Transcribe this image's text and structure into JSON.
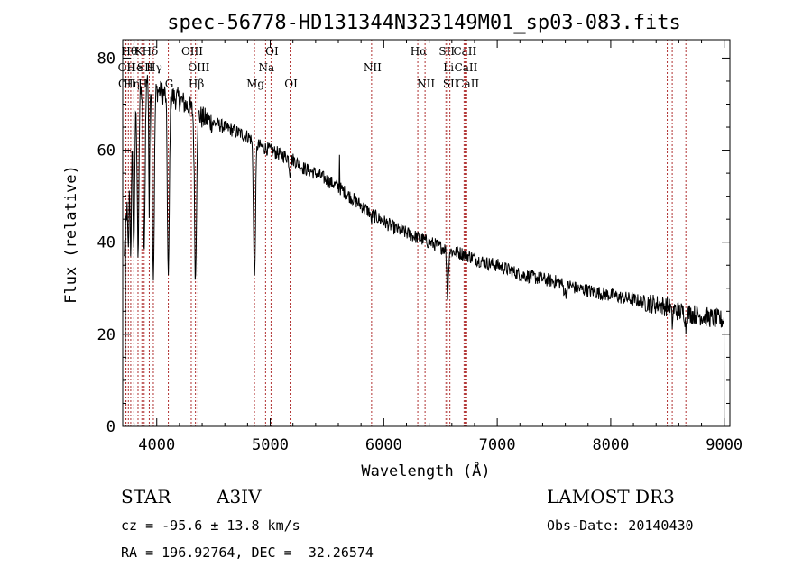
{
  "chart_data": {
    "type": "line",
    "title": "spec-56778-HD131344N323149M01_sp03-083.fits",
    "xlabel": "Wavelength (Å)",
    "ylabel": "Flux (relative)",
    "xlim": [
      3700,
      9050
    ],
    "ylim": [
      0,
      84
    ],
    "xticks": [
      4000,
      5000,
      6000,
      7000,
      8000,
      9000
    ],
    "yticks": [
      0,
      20,
      40,
      60,
      80
    ],
    "continuum": [
      [
        3700,
        32
      ],
      [
        3760,
        58
      ],
      [
        3800,
        66
      ],
      [
        3850,
        72
      ],
      [
        3900,
        75
      ],
      [
        3950,
        76
      ],
      [
        4000,
        73
      ],
      [
        4100,
        72
      ],
      [
        4200,
        71
      ],
      [
        4300,
        69
      ],
      [
        4400,
        67
      ],
      [
        4500,
        66
      ],
      [
        4600,
        65
      ],
      [
        4700,
        64
      ],
      [
        4800,
        63
      ],
      [
        4900,
        61
      ],
      [
        5000,
        60
      ],
      [
        5100,
        59
      ],
      [
        5200,
        58
      ],
      [
        5300,
        56
      ],
      [
        5400,
        55
      ],
      [
        5500,
        53.5
      ],
      [
        5600,
        52
      ],
      [
        5700,
        50
      ],
      [
        5800,
        48
      ],
      [
        5900,
        46
      ],
      [
        6000,
        44.5
      ],
      [
        6100,
        43
      ],
      [
        6200,
        42
      ],
      [
        6300,
        41
      ],
      [
        6400,
        40
      ],
      [
        6500,
        39
      ],
      [
        6600,
        38
      ],
      [
        6700,
        37.5
      ],
      [
        6800,
        36.5
      ],
      [
        6900,
        35.5
      ],
      [
        7000,
        35
      ],
      [
        7100,
        34
      ],
      [
        7200,
        33
      ],
      [
        7300,
        32.5
      ],
      [
        7400,
        32
      ],
      [
        7500,
        31.5
      ],
      [
        7600,
        31
      ],
      [
        7700,
        30
      ],
      [
        7800,
        29.5
      ],
      [
        7900,
        29
      ],
      [
        8000,
        28.5
      ],
      [
        8100,
        28
      ],
      [
        8200,
        27.5
      ],
      [
        8300,
        27
      ],
      [
        8400,
        26.5
      ],
      [
        8500,
        26
      ],
      [
        8600,
        25
      ],
      [
        8700,
        24.5
      ],
      [
        8800,
        24
      ],
      [
        8900,
        23.5
      ],
      [
        9000,
        23
      ]
    ],
    "absorption": [
      {
        "w": 3750,
        "depth": 16,
        "width": 8
      },
      {
        "w": 3771,
        "depth": 22,
        "width": 8
      },
      {
        "w": 3798,
        "depth": 28,
        "width": 9
      },
      {
        "w": 3835,
        "depth": 32,
        "width": 10
      },
      {
        "w": 3889,
        "depth": 38,
        "width": 11
      },
      {
        "w": 3934,
        "depth": 30,
        "width": 6
      },
      {
        "w": 3970,
        "depth": 42,
        "width": 12
      },
      {
        "w": 4102,
        "depth": 40,
        "width": 12
      },
      {
        "w": 4341,
        "depth": 36,
        "width": 12
      },
      {
        "w": 4861,
        "depth": 30,
        "width": 12
      },
      {
        "w": 5174,
        "depth": 3,
        "width": 10
      },
      {
        "w": 5890,
        "depth": 2,
        "width": 6
      },
      {
        "w": 6563,
        "depth": 10,
        "width": 10
      },
      {
        "w": 7600,
        "depth": 2,
        "width": 20
      },
      {
        "w": 8542,
        "depth": 3,
        "width": 8
      },
      {
        "w": 8662,
        "depth": 3,
        "width": 8
      }
    ],
    "spikes": [
      {
        "w": 3722,
        "value": 14
      },
      {
        "w": 5610,
        "value": 59
      }
    ],
    "lines": [
      {
        "w": 3726,
        "label": "OII",
        "row": 1
      },
      {
        "w": 3729,
        "label": "OII",
        "row": 2
      },
      {
        "w": 3750,
        "label": "Hθ",
        "row": 0
      },
      {
        "w": 3771,
        "label": "Hη",
        "row": 2
      },
      {
        "w": 3798,
        "label": "He",
        "row": 1
      },
      {
        "w": 3835,
        "label": "K",
        "row": 0
      },
      {
        "w": 3869,
        "label": "H",
        "row": 2
      },
      {
        "w": 3889,
        "label": "SII",
        "row": 1
      },
      {
        "w": 3934,
        "label": "Hδ",
        "row": 0
      },
      {
        "w": 3970,
        "label": "Hγ",
        "row": 1
      },
      {
        "w": 4102,
        "label": "G",
        "row": 2
      },
      {
        "w": 4304,
        "label": "OIII",
        "row": 0
      },
      {
        "w": 4341,
        "label": "Hβ",
        "row": 2
      },
      {
        "w": 4363,
        "label": "OIII",
        "row": 1
      },
      {
        "w": 4861,
        "label": "Mg",
        "row": 2
      },
      {
        "w": 4959,
        "label": "Na",
        "row": 1
      },
      {
        "w": 5007,
        "label": "OI",
        "row": 0
      },
      {
        "w": 5175,
        "label": "OI",
        "row": 2
      },
      {
        "w": 5893,
        "label": "NII",
        "row": 1
      },
      {
        "w": 6300,
        "label": "Hα",
        "row": 0
      },
      {
        "w": 6364,
        "label": "NII",
        "row": 2
      },
      {
        "w": 6548,
        "label": "SII",
        "row": 0
      },
      {
        "w": 6563,
        "label": "Li",
        "row": 1
      },
      {
        "w": 6583,
        "label": "SII",
        "row": 2
      },
      {
        "w": 6708,
        "label": "CaII",
        "row": 0
      },
      {
        "w": 6717,
        "label": "CaII",
        "row": 1
      },
      {
        "w": 6731,
        "label": "CaII",
        "row": 2
      },
      {
        "w": 8498,
        "label": "",
        "row": 0
      },
      {
        "w": 8542,
        "label": "",
        "row": 0
      },
      {
        "w": 8662,
        "label": "",
        "row": 0
      }
    ]
  },
  "info": {
    "object_type": "STAR",
    "subclass": "A3IV",
    "survey": "LAMOST DR3",
    "cz": "cz = -95.6 ± 13.8 km/s",
    "obs_date": "Obs-Date: 20140430",
    "coords": "RA = 196.92764, DEC =  32.26574"
  }
}
